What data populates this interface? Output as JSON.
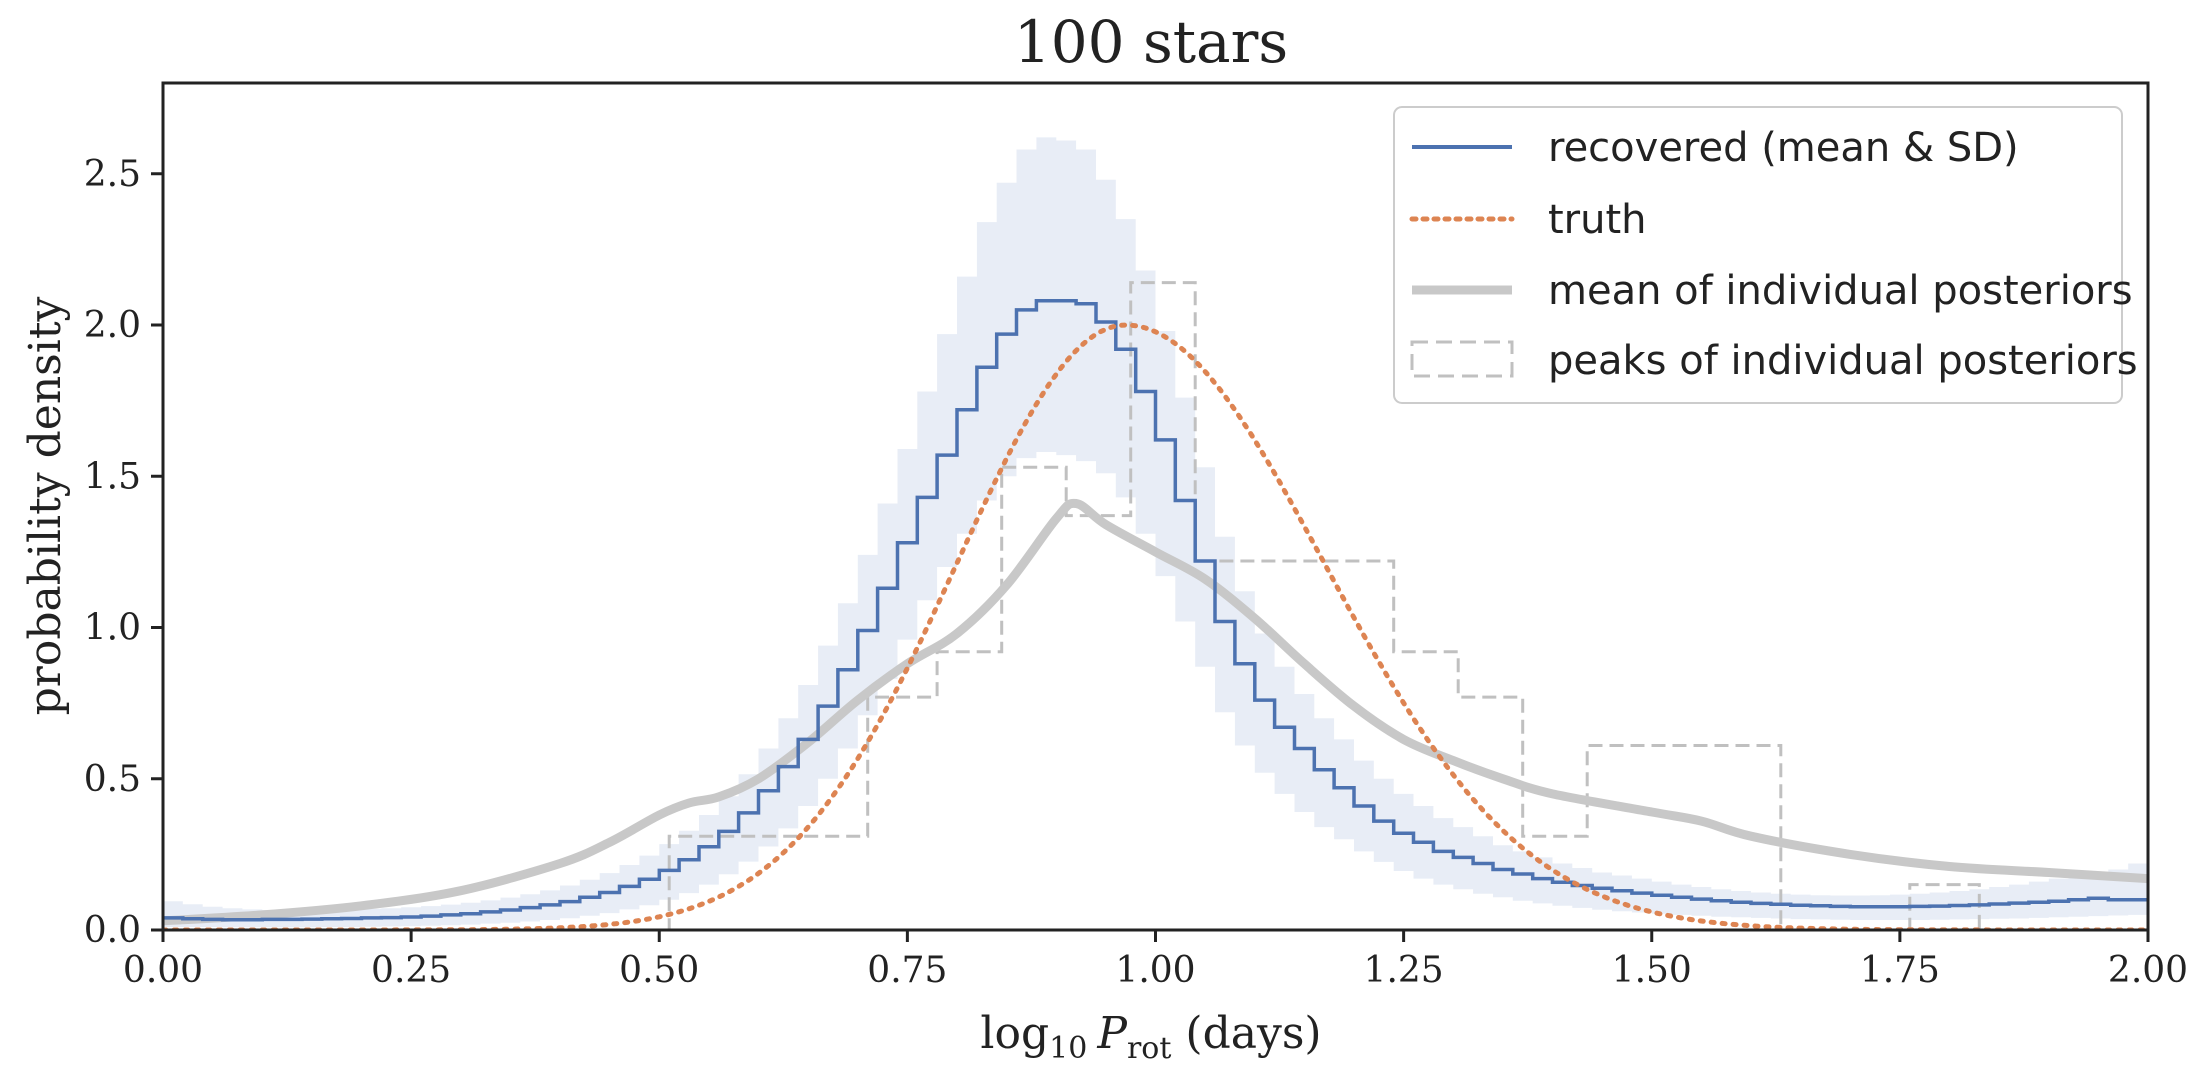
{
  "chart_data": {
    "type": "line",
    "title": "100 stars",
    "xlabel_parts": {
      "pre": "log",
      "sub10": "10",
      "var": "P",
      "sub_rot": "rot",
      "post": " (days)"
    },
    "ylabel": "probability density",
    "xlim": [
      0.0,
      2.0
    ],
    "ylim": [
      0.0,
      2.8
    ],
    "xticks": [
      0.0,
      0.25,
      0.5,
      0.75,
      1.0,
      1.25,
      1.5,
      1.75,
      2.0
    ],
    "xtick_labels": [
      "0.00",
      "0.25",
      "0.50",
      "0.75",
      "1.00",
      "1.25",
      "1.50",
      "1.75",
      "2.00"
    ],
    "yticks": [
      0.0,
      0.5,
      1.0,
      1.5,
      2.0,
      2.5
    ],
    "ytick_labels": [
      "0.0",
      "0.5",
      "1.0",
      "1.5",
      "2.0",
      "2.5"
    ],
    "legend_position": "upper-right",
    "legend": [
      {
        "label": "recovered (mean & SD)",
        "style": "solid",
        "color": "#4c72b0"
      },
      {
        "label": "truth",
        "style": "dotted",
        "color": "#dd8452"
      },
      {
        "label": "mean of individual posteriors",
        "style": "thick",
        "color": "#c8c8c8"
      },
      {
        "label": "peaks of individual posteriors",
        "style": "dashed-box",
        "color": "#c0c0c0"
      }
    ],
    "colors": {
      "recovered": "#4c72b0",
      "band": "#e8edf6",
      "truth": "#dd8452",
      "mean_posterior": "#c8c8c8",
      "peaks": "#c0c0c0",
      "axes": "#222222"
    },
    "recovered_step": {
      "bin_width": 0.02,
      "x_start": 0.0,
      "mean": [
        0.04,
        0.037,
        0.035,
        0.034,
        0.034,
        0.035,
        0.035,
        0.036,
        0.037,
        0.038,
        0.04,
        0.041,
        0.043,
        0.046,
        0.05,
        0.054,
        0.06,
        0.066,
        0.074,
        0.083,
        0.094,
        0.108,
        0.124,
        0.144,
        0.168,
        0.197,
        0.232,
        0.275,
        0.326,
        0.387,
        0.46,
        0.54,
        0.63,
        0.74,
        0.86,
        0.99,
        1.13,
        1.28,
        1.43,
        1.57,
        1.72,
        1.86,
        1.97,
        2.05,
        2.08,
        2.08,
        2.07,
        2.01,
        1.92,
        1.78,
        1.62,
        1.42,
        1.22,
        1.02,
        0.88,
        0.76,
        0.67,
        0.6,
        0.53,
        0.47,
        0.41,
        0.36,
        0.32,
        0.29,
        0.26,
        0.24,
        0.22,
        0.2,
        0.185,
        0.17,
        0.158,
        0.147,
        0.138,
        0.13,
        0.122,
        0.115,
        0.108,
        0.102,
        0.097,
        0.092,
        0.088,
        0.085,
        0.082,
        0.08,
        0.078,
        0.077,
        0.077,
        0.077,
        0.078,
        0.079,
        0.081,
        0.083,
        0.086,
        0.089,
        0.092,
        0.095,
        0.1,
        0.105,
        0.1,
        0.1
      ],
      "upper": [
        0.095,
        0.085,
        0.077,
        0.072,
        0.068,
        0.066,
        0.065,
        0.065,
        0.066,
        0.068,
        0.07,
        0.072,
        0.075,
        0.079,
        0.084,
        0.09,
        0.098,
        0.107,
        0.118,
        0.131,
        0.147,
        0.166,
        0.188,
        0.215,
        0.246,
        0.284,
        0.328,
        0.38,
        0.442,
        0.515,
        0.6,
        0.7,
        0.81,
        0.94,
        1.08,
        1.24,
        1.41,
        1.59,
        1.78,
        1.97,
        2.16,
        2.34,
        2.47,
        2.58,
        2.62,
        2.61,
        2.58,
        2.48,
        2.35,
        2.18,
        1.98,
        1.76,
        1.53,
        1.3,
        1.12,
        0.98,
        0.87,
        0.78,
        0.7,
        0.63,
        0.56,
        0.5,
        0.45,
        0.41,
        0.37,
        0.34,
        0.31,
        0.28,
        0.26,
        0.24,
        0.22,
        0.205,
        0.19,
        0.18,
        0.17,
        0.16,
        0.15,
        0.142,
        0.135,
        0.129,
        0.124,
        0.12,
        0.117,
        0.115,
        0.114,
        0.114,
        0.115,
        0.117,
        0.12,
        0.124,
        0.129,
        0.135,
        0.142,
        0.15,
        0.16,
        0.17,
        0.18,
        0.19,
        0.2,
        0.22
      ],
      "lower": [
        0.01,
        0.01,
        0.01,
        0.009,
        0.009,
        0.009,
        0.009,
        0.009,
        0.01,
        0.01,
        0.011,
        0.012,
        0.013,
        0.014,
        0.016,
        0.018,
        0.021,
        0.024,
        0.028,
        0.033,
        0.039,
        0.047,
        0.056,
        0.068,
        0.082,
        0.1,
        0.122,
        0.15,
        0.184,
        0.226,
        0.276,
        0.336,
        0.41,
        0.5,
        0.6,
        0.71,
        0.83,
        0.96,
        1.09,
        1.2,
        1.31,
        1.42,
        1.5,
        1.56,
        1.58,
        1.57,
        1.55,
        1.51,
        1.43,
        1.31,
        1.17,
        1.02,
        0.87,
        0.72,
        0.61,
        0.52,
        0.45,
        0.39,
        0.34,
        0.3,
        0.26,
        0.225,
        0.195,
        0.17,
        0.15,
        0.135,
        0.12,
        0.108,
        0.097,
        0.088,
        0.08,
        0.073,
        0.067,
        0.062,
        0.058,
        0.054,
        0.05,
        0.047,
        0.044,
        0.042,
        0.04,
        0.038,
        0.036,
        0.035,
        0.034,
        0.033,
        0.033,
        0.033,
        0.033,
        0.034,
        0.035,
        0.036,
        0.037,
        0.038,
        0.04,
        0.042,
        0.044,
        0.046,
        0.048,
        0.05
      ]
    },
    "truth": {
      "distribution": "lognormal-like",
      "peak_x": 0.97,
      "peak_y": 2.0,
      "sigma_left": 0.17,
      "sigma_right": 0.2
    },
    "mean_posterior": {
      "x": [
        0.0,
        0.1,
        0.2,
        0.3,
        0.4,
        0.45,
        0.5,
        0.53,
        0.56,
        0.6,
        0.65,
        0.7,
        0.75,
        0.8,
        0.85,
        0.9,
        0.92,
        0.95,
        1.0,
        1.05,
        1.1,
        1.15,
        1.2,
        1.25,
        1.3,
        1.35,
        1.4,
        1.5,
        1.55,
        1.6,
        1.7,
        1.8,
        1.9,
        2.0
      ],
      "y": [
        0.03,
        0.05,
        0.08,
        0.13,
        0.22,
        0.29,
        0.38,
        0.42,
        0.44,
        0.5,
        0.62,
        0.76,
        0.88,
        0.98,
        1.14,
        1.36,
        1.41,
        1.34,
        1.25,
        1.16,
        1.03,
        0.88,
        0.74,
        0.63,
        0.56,
        0.5,
        0.45,
        0.39,
        0.36,
        0.31,
        0.25,
        0.21,
        0.19,
        0.17
      ]
    },
    "peaks_hist": {
      "edges": [
        0.0,
        0.51,
        0.71,
        0.78,
        0.845,
        0.91,
        0.975,
        1.04,
        1.24,
        1.305,
        1.37,
        1.435,
        1.63,
        1.76,
        1.83,
        2.0
      ],
      "heights": [
        0.0,
        0.31,
        0.77,
        0.92,
        1.53,
        1.37,
        2.14,
        1.22,
        0.92,
        0.77,
        0.31,
        0.61,
        0.0,
        0.15,
        0.0
      ]
    }
  }
}
